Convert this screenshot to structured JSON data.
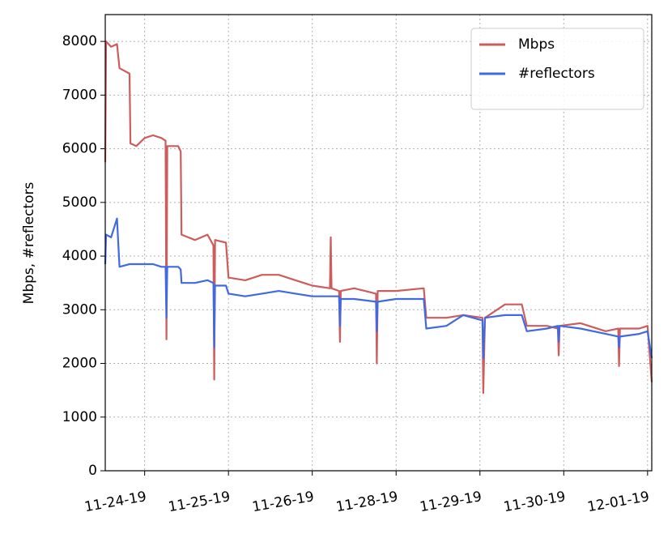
{
  "chart_data": {
    "type": "line",
    "y_label": "Mbps, #reflectors",
    "x": [
      -0.47,
      -0.46,
      -0.4,
      -0.33,
      -0.3,
      -0.18,
      -0.17,
      -0.1,
      0,
      0.1,
      0.2,
      0.25,
      0.26,
      0.27,
      0.4,
      0.43,
      0.44,
      0.6,
      0.75,
      0.82,
      0.83,
      0.84,
      0.97,
      1.0,
      1.2,
      1.4,
      1.6,
      1.8,
      2.0,
      2.21,
      2.22,
      2.23,
      2.32,
      2.33,
      2.34,
      2.5,
      2.76,
      2.77,
      2.78,
      3.0,
      3.33,
      3.36,
      3.6,
      3.8,
      4.03,
      4.04,
      4.06,
      4.3,
      4.5,
      4.56,
      4.8,
      4.93,
      4.94,
      4.95,
      5.2,
      5.5,
      5.65,
      5.66,
      5.67,
      5.9,
      6.0,
      6.05
    ],
    "series": [
      {
        "name": "Mbps",
        "color": "#cd5c5c",
        "values": [
          5750,
          8000,
          7900,
          7950,
          7500,
          7400,
          6100,
          6050,
          6200,
          6250,
          6200,
          6150,
          2450,
          6050,
          6050,
          5950,
          4400,
          4300,
          4400,
          4200,
          1700,
          4300,
          4250,
          3600,
          3550,
          3650,
          3650,
          3550,
          3450,
          3400,
          4350,
          3400,
          3350,
          2400,
          3350,
          3400,
          3300,
          2000,
          3350,
          3350,
          3400,
          2850,
          2850,
          2900,
          2850,
          1450,
          2850,
          3100,
          3100,
          2700,
          2700,
          2650,
          2150,
          2700,
          2750,
          2600,
          2650,
          1950,
          2650,
          2650,
          2700,
          1650
        ]
      },
      {
        "name": "#reflectors",
        "color": "#4169e1",
        "values": [
          3850,
          4400,
          4350,
          4700,
          3800,
          3850,
          3850,
          3850,
          3850,
          3850,
          3800,
          3800,
          2850,
          3800,
          3800,
          3750,
          3500,
          3500,
          3550,
          3500,
          2300,
          3450,
          3450,
          3300,
          3250,
          3300,
          3350,
          3300,
          3250,
          3250,
          3250,
          3250,
          3250,
          2700,
          3200,
          3200,
          3150,
          2600,
          3150,
          3200,
          3200,
          2650,
          2700,
          2900,
          2800,
          2100,
          2850,
          2900,
          2900,
          2600,
          2650,
          2700,
          2400,
          2700,
          2650,
          2550,
          2500,
          2300,
          2500,
          2550,
          2600,
          2100
        ]
      }
    ],
    "xlim": [
      -0.47,
      6.05
    ],
    "xticks": [
      {
        "value": 0,
        "label": "11-24-19"
      },
      {
        "value": 1,
        "label": "11-25-19"
      },
      {
        "value": 2,
        "label": "11-26-19"
      },
      {
        "value": 3,
        "label": "11-28-19"
      },
      {
        "value": 4,
        "label": "11-29-19"
      },
      {
        "value": 5,
        "label": "11-30-19"
      },
      {
        "value": 6,
        "label": "12-01-19"
      }
    ],
    "ylim": [
      0,
      8500
    ],
    "yticks": [
      0,
      1000,
      2000,
      3000,
      4000,
      5000,
      6000,
      7000,
      8000
    ],
    "grid": true,
    "legend": "upper right"
  }
}
